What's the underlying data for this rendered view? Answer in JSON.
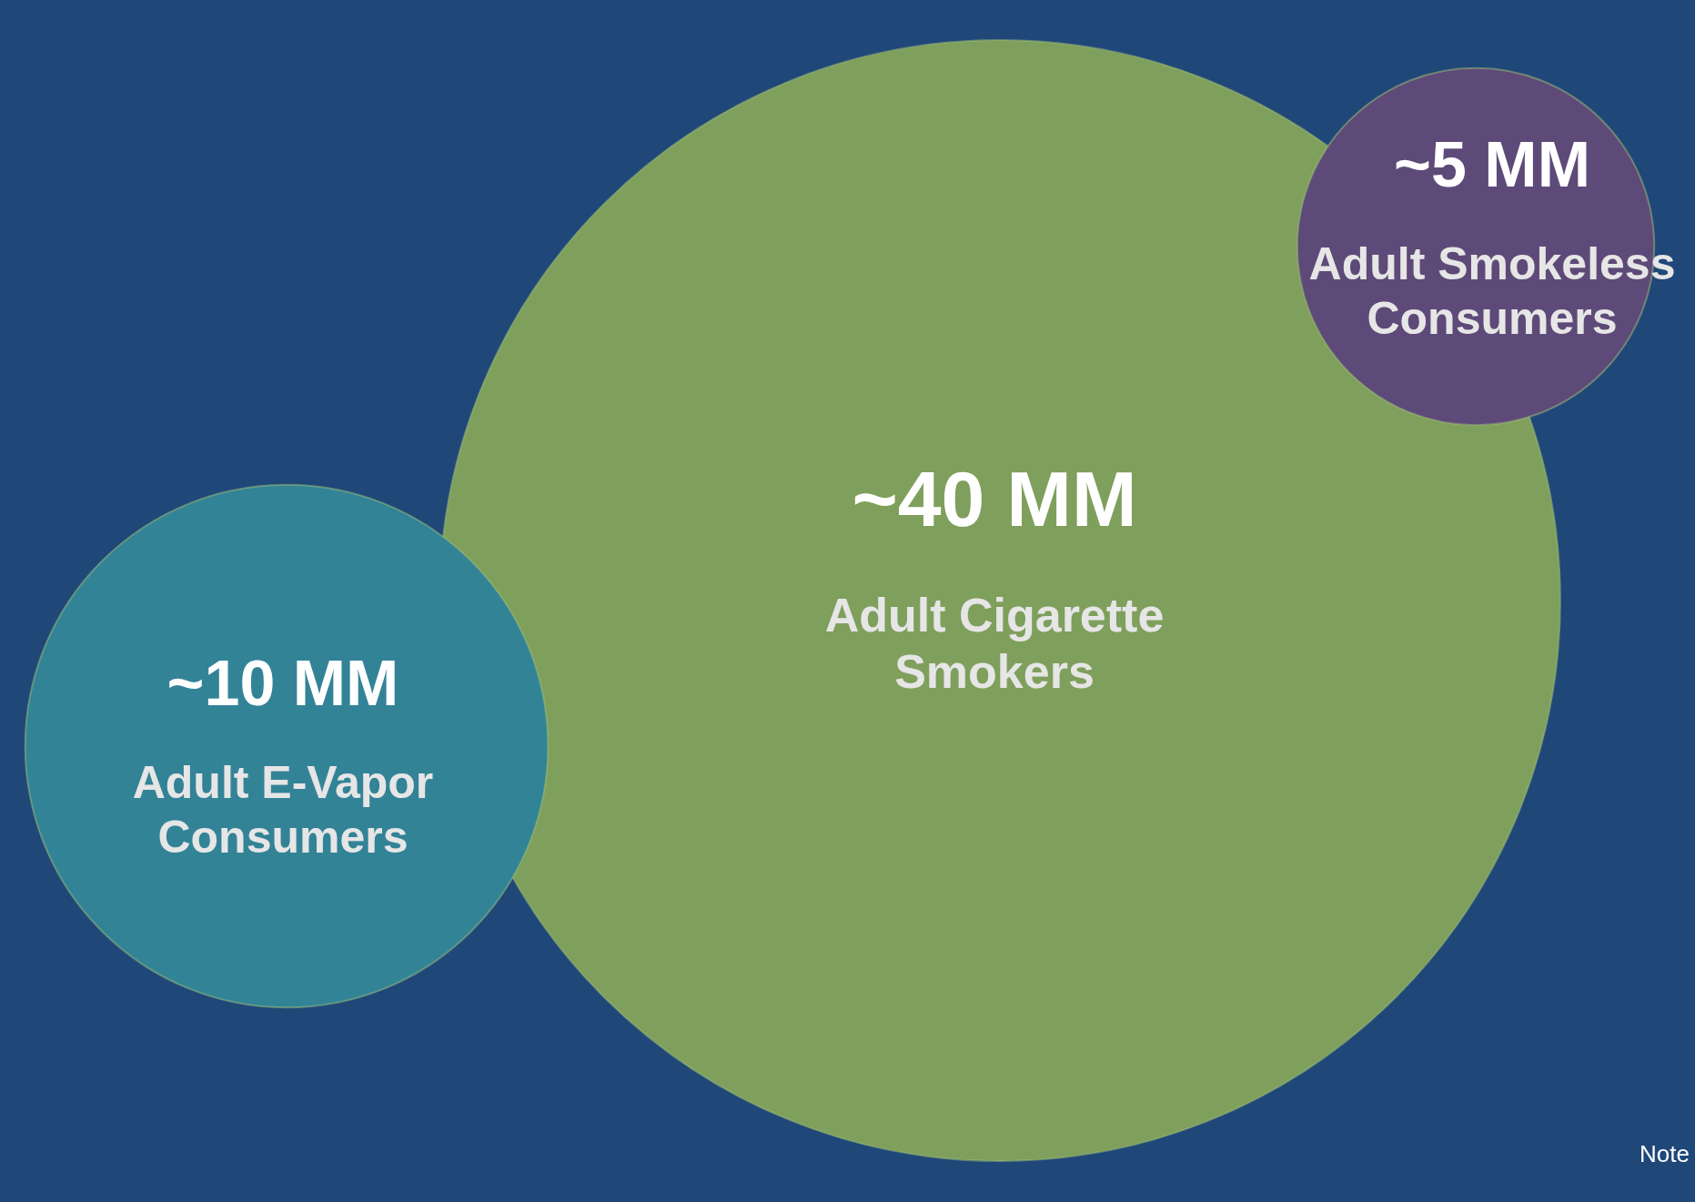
{
  "chart_data": {
    "type": "other",
    "categories": [
      "Adult Cigarette Smokers",
      "Adult E-Vapor Consumers",
      "Adult Smokeless Consumers"
    ],
    "values": [
      40,
      10,
      5
    ],
    "value_labels": [
      "~40 MM",
      "~10 MM",
      "~5 MM"
    ],
    "colors": [
      "#7f9f5c",
      "#338397",
      "#5e4a78"
    ],
    "annotations": [
      "Note"
    ]
  }
}
